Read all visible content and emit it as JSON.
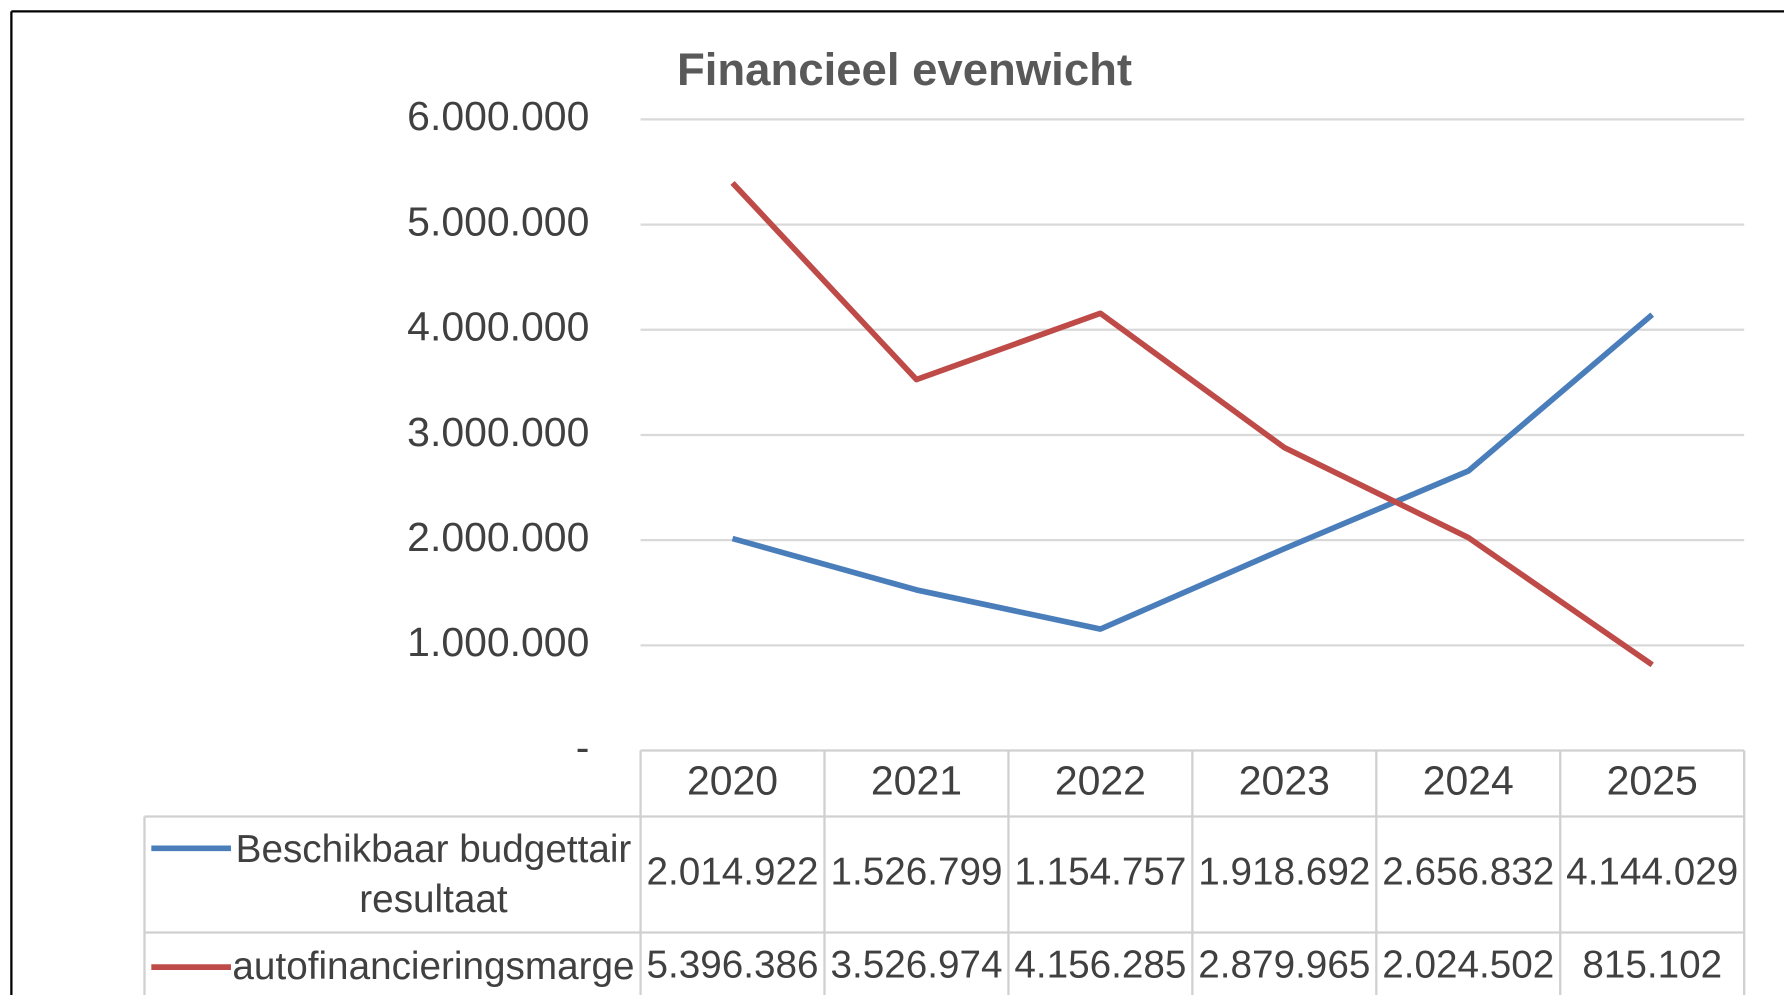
{
  "chart_data": {
    "type": "line",
    "title": "Financieel evenwicht",
    "categories": [
      "2020",
      "2021",
      "2022",
      "2023",
      "2024",
      "2025"
    ],
    "series": [
      {
        "name": "Beschikbaar budgettair resultaat",
        "color": "#4a7ebb",
        "values": [
          2014922,
          1526799,
          1154757,
          1918692,
          2656832,
          4144029
        ],
        "value_labels": [
          "2.014.922",
          "1.526.799",
          "1.154.757",
          "1.918.692",
          "2.656.832",
          "4.144.029"
        ]
      },
      {
        "name": "autofinancieringsmarge",
        "color": "#be4b48",
        "values": [
          5396386,
          3526974,
          4156285,
          2879965,
          2024502,
          815102
        ],
        "value_labels": [
          "5.396.386",
          "3.526.974",
          "4.156.285",
          "2.879.965",
          "2.024.502",
          "815.102"
        ]
      }
    ],
    "ylim": [
      0,
      6000000
    ],
    "yticks": [
      {
        "value": 0,
        "label": "-"
      },
      {
        "value": 1000000,
        "label": "1.000.000"
      },
      {
        "value": 2000000,
        "label": "2.000.000"
      },
      {
        "value": 3000000,
        "label": "3.000.000"
      },
      {
        "value": 4000000,
        "label": "4.000.000"
      },
      {
        "value": 5000000,
        "label": "5.000.000"
      },
      {
        "value": 6000000,
        "label": "6.000.000"
      }
    ],
    "grid": true
  }
}
